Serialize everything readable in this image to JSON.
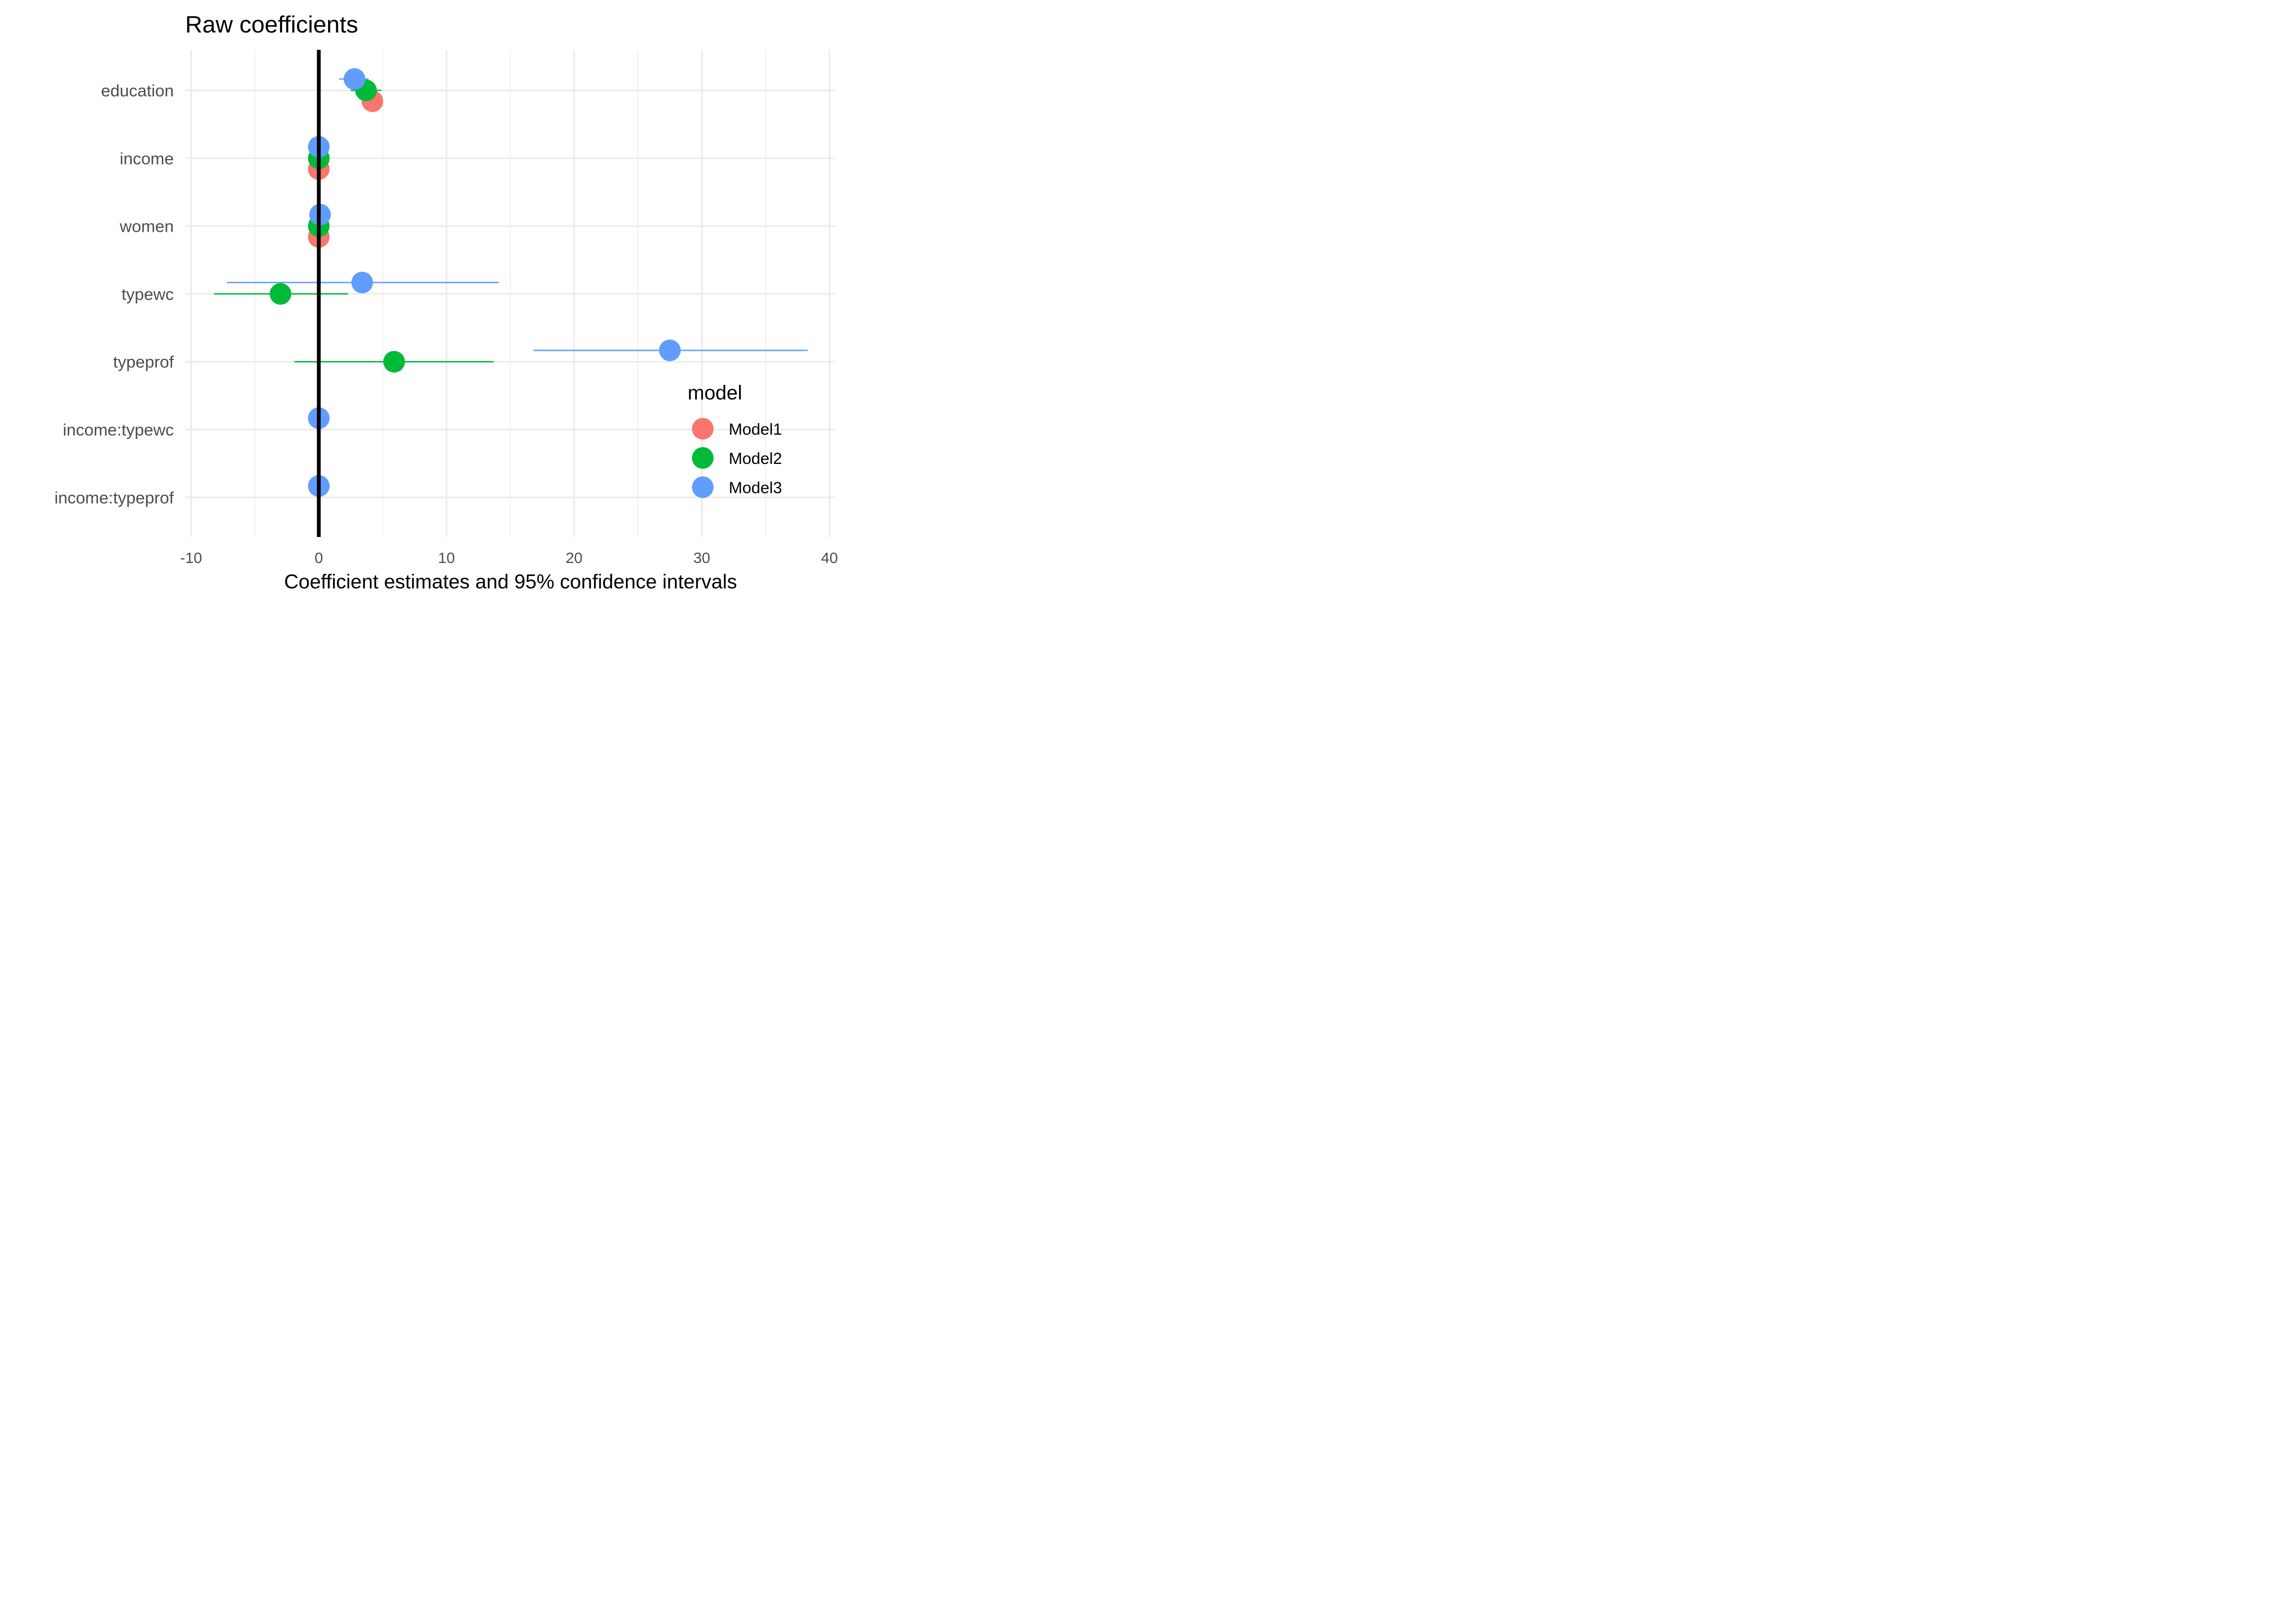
{
  "chart_data": {
    "type": "scatter",
    "title": "Raw coefficients",
    "xlabel": "Coefficient estimates and 95% confidence intervals",
    "ylabel": "",
    "xlim": [
      -10,
      40
    ],
    "x_ticks": [
      -10,
      0,
      10,
      20,
      30,
      40
    ],
    "x_tick_labels": [
      "-10",
      "0",
      "10",
      "20",
      "30",
      "40"
    ],
    "categories": [
      "education",
      "income",
      "women",
      "typewc",
      "typeprof",
      "income:typewc",
      "income:typeprof"
    ],
    "reference_line": 0,
    "grid": true,
    "legend": {
      "title": "model",
      "position": "right"
    },
    "series": [
      {
        "name": "Model1",
        "color": "#F8766D",
        "points": [
          {
            "term": "education",
            "estimate": 4.2,
            "low": 4.2,
            "high": 4.2
          },
          {
            "term": "income",
            "estimate": 0.0,
            "low": 0.0,
            "high": 0.0
          },
          {
            "term": "women",
            "estimate": 0.0,
            "low": 0.0,
            "high": 0.0
          }
        ]
      },
      {
        "name": "Model2",
        "color": "#00BA38",
        "points": [
          {
            "term": "education",
            "estimate": 3.7,
            "low": 2.5,
            "high": 4.9
          },
          {
            "term": "income",
            "estimate": 0.0,
            "low": 0.0,
            "high": 0.0
          },
          {
            "term": "women",
            "estimate": 0.0,
            "low": 0.0,
            "high": 0.0
          },
          {
            "term": "typewc",
            "estimate": -3.0,
            "low": -8.2,
            "high": 2.3
          },
          {
            "term": "typeprof",
            "estimate": 5.9,
            "low": -1.9,
            "high": 13.7
          }
        ]
      },
      {
        "name": "Model3",
        "color": "#619CFF",
        "points": [
          {
            "term": "education",
            "estimate": 2.8,
            "low": 1.6,
            "high": 3.9
          },
          {
            "term": "income",
            "estimate": 0.0,
            "low": 0.0,
            "high": 0.0
          },
          {
            "term": "women",
            "estimate": 0.1,
            "low": 0.1,
            "high": 0.1
          },
          {
            "term": "typewc",
            "estimate": 3.4,
            "low": -7.2,
            "high": 14.1
          },
          {
            "term": "typeprof",
            "estimate": 27.5,
            "low": 16.8,
            "high": 38.3
          },
          {
            "term": "income:typewc",
            "estimate": 0.0,
            "low": 0.0,
            "high": 0.0
          },
          {
            "term": "income:typeprof",
            "estimate": 0.0,
            "low": 0.0,
            "high": 0.0
          }
        ]
      }
    ]
  }
}
